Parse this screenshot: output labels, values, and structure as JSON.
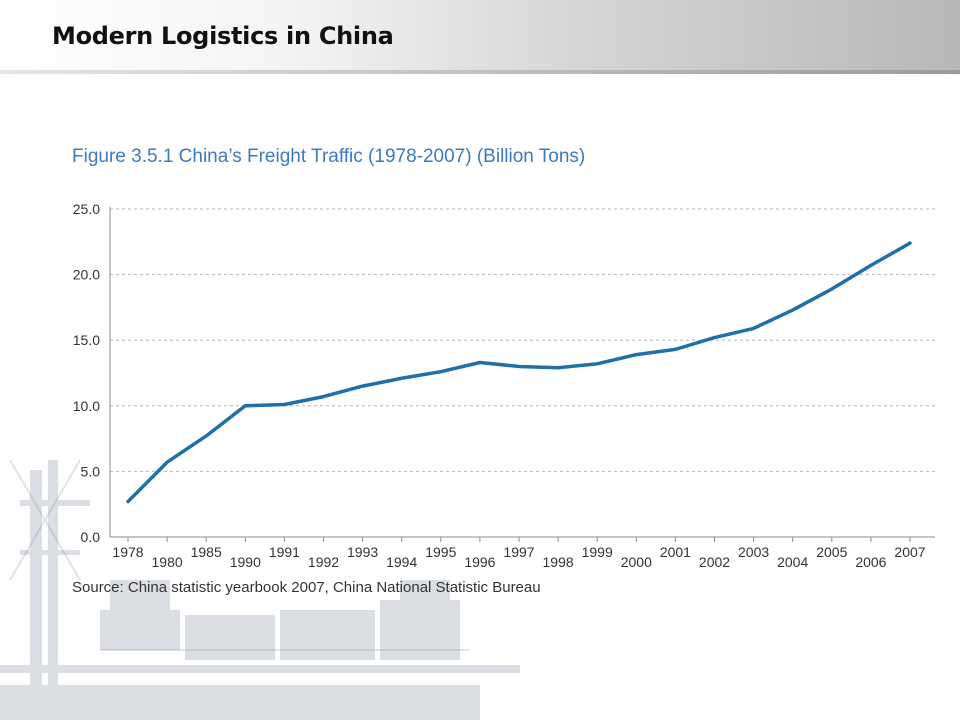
{
  "slide": {
    "title": "Modern Logistics in China"
  },
  "chart_data": {
    "type": "line",
    "title": "Figure 3.5.1 China’s Freight Traffic (1978-2007) (Billion Tons)",
    "source": "Source: China statistic yearbook 2007, China National Statistic Bureau",
    "xlabel": "",
    "ylabel": "",
    "ylim": [
      0,
      25
    ],
    "yticks": [
      "0.0",
      "5.0",
      "10.0",
      "15.0",
      "20.0",
      "25.0"
    ],
    "grid": true,
    "categories": [
      "1978",
      "1980",
      "1985",
      "1990",
      "1991",
      "1992",
      "1993",
      "1994",
      "1995",
      "1996",
      "1997",
      "1998",
      "1999",
      "2000",
      "2001",
      "2002",
      "2003",
      "2004",
      "2005",
      "2006",
      "2007"
    ],
    "series": [
      {
        "values": [
          2.7,
          5.7,
          7.7,
          10.0,
          10.1,
          10.7,
          11.5,
          12.1,
          12.6,
          13.3,
          13.0,
          12.9,
          13.2,
          13.9,
          14.3,
          15.2,
          15.9,
          17.3,
          18.9,
          20.7,
          22.4
        ],
        "color": "#1f6fa8"
      }
    ],
    "colors": {
      "line": "#1f6fa8",
      "title": "#3b7bbd",
      "grid": "#b5b5b5"
    }
  }
}
